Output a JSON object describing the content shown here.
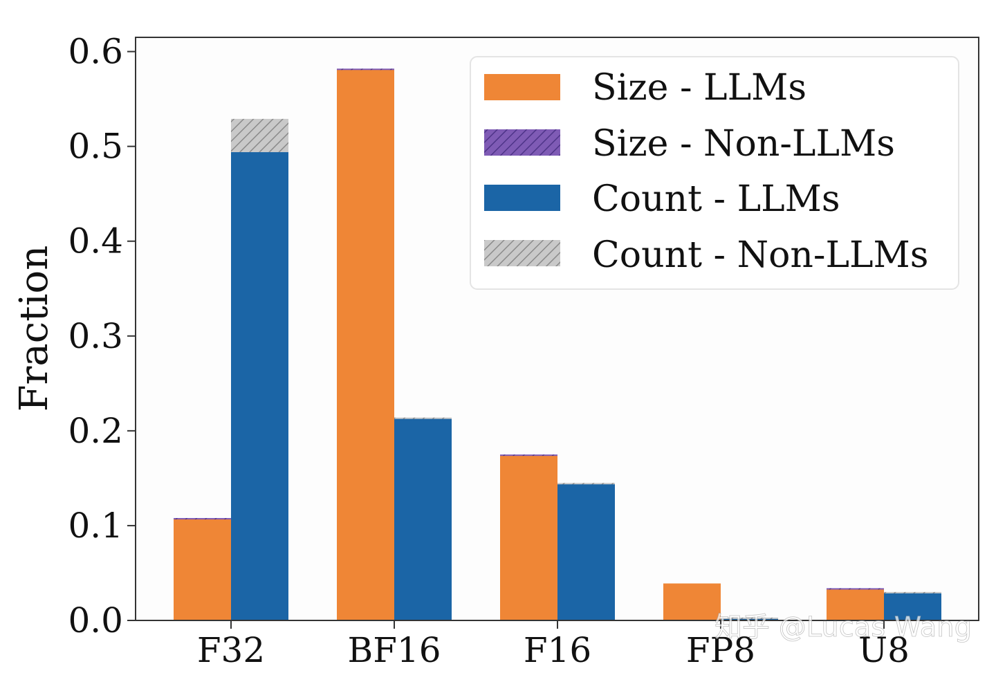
{
  "chart_data": {
    "type": "bar",
    "ylabel": "Fraction",
    "xlabel": "",
    "ylim": [
      0,
      0.615
    ],
    "yticks": [
      "0.0",
      "0.1",
      "0.2",
      "0.3",
      "0.4",
      "0.5",
      "0.6"
    ],
    "categories": [
      "F32",
      "BF16",
      "F16",
      "FP8",
      "U8"
    ],
    "groups": [
      {
        "name": "Size",
        "series": [
          {
            "name": "Size - LLMs",
            "values": [
              0.107,
              0.581,
              0.174,
              0.039,
              0.033
            ],
            "color": "#ef8636",
            "pattern": "solid"
          },
          {
            "name": "Size - Non-LLMs",
            "values": [
              0.001,
              0.001,
              0.001,
              0.0,
              0.001
            ],
            "color": "#7f5bb5",
            "pattern": "hatch"
          }
        ]
      },
      {
        "name": "Count",
        "series": [
          {
            "name": "Count - LLMs",
            "values": [
              0.494,
              0.213,
              0.144,
              0.002,
              0.029
            ],
            "color": "#1b65a6",
            "pattern": "solid"
          },
          {
            "name": "Count - Non-LLMs",
            "values": [
              0.035,
              0.001,
              0.001,
              0.001,
              0.001
            ],
            "color": "#bdbdbd",
            "pattern": "hatch"
          }
        ]
      }
    ],
    "legend": {
      "position": "top-right",
      "entries": [
        "Size - LLMs",
        "Size - Non-LLMs",
        "Count - LLMs",
        "Count - Non-LLMs"
      ]
    },
    "grid": false
  },
  "watermark": "知乎 @Lucas Wang"
}
